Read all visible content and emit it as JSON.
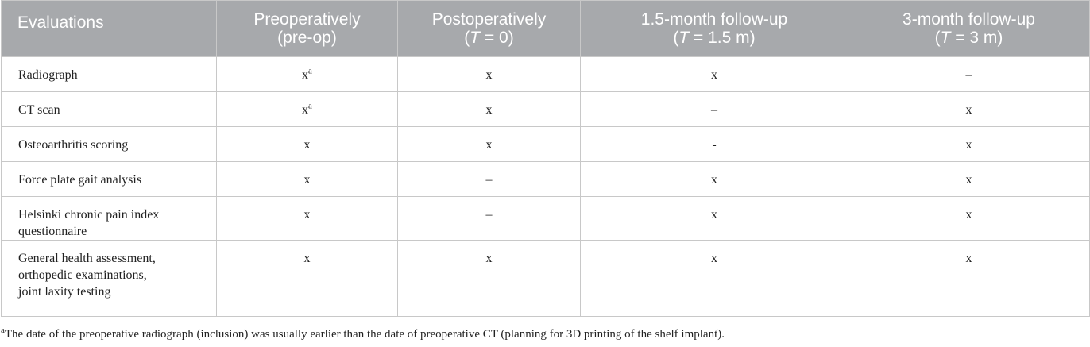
{
  "table": {
    "header": [
      {
        "lines": [
          [
            "Evaluations"
          ]
        ]
      },
      {
        "lines": [
          [
            "Preoperatively"
          ],
          [
            "(pre-op)"
          ]
        ]
      },
      {
        "lines": [
          [
            "Postoperatively"
          ],
          [
            "(",
            "T",
            " = 0)"
          ]
        ]
      },
      {
        "lines": [
          [
            "1.5-month follow-up"
          ],
          [
            "(",
            "T",
            " = 1.5 m)"
          ]
        ]
      },
      {
        "lines": [
          [
            "3-month follow-up"
          ],
          [
            "(",
            "T",
            " = 3 m)"
          ]
        ]
      }
    ],
    "rows": [
      {
        "label": [
          "Radiograph"
        ],
        "cells": [
          {
            "text": "x",
            "note": "a"
          },
          {
            "text": "x"
          },
          {
            "text": "x"
          },
          {
            "text": "–"
          }
        ]
      },
      {
        "label": [
          "CT scan"
        ],
        "cells": [
          {
            "text": "x",
            "note": "a"
          },
          {
            "text": "x"
          },
          {
            "text": "–"
          },
          {
            "text": "x"
          }
        ]
      },
      {
        "label": [
          "Osteoarthritis scoring"
        ],
        "cells": [
          {
            "text": "x"
          },
          {
            "text": "x"
          },
          {
            "text": "-"
          },
          {
            "text": "x"
          }
        ]
      },
      {
        "label": [
          "Force plate gait analysis"
        ],
        "cells": [
          {
            "text": "x"
          },
          {
            "text": "–"
          },
          {
            "text": "x"
          },
          {
            "text": "x"
          }
        ]
      },
      {
        "label": [
          "Helsinki chronic pain index",
          "questionnaire"
        ],
        "cells": [
          {
            "text": "x"
          },
          {
            "text": "–"
          },
          {
            "text": "x"
          },
          {
            "text": "x"
          }
        ]
      },
      {
        "label": [
          "General health assessment,",
          "orthopedic examinations,",
          "joint laxity testing"
        ],
        "cells": [
          {
            "text": "x"
          },
          {
            "text": "x"
          },
          {
            "text": "x"
          },
          {
            "text": "x"
          }
        ]
      }
    ]
  },
  "footnote": {
    "mark": "a",
    "text": "The date of the preoperative radiograph (inclusion) was usually earlier than the date of preoperative CT (planning for 3D printing of the shelf implant)."
  }
}
